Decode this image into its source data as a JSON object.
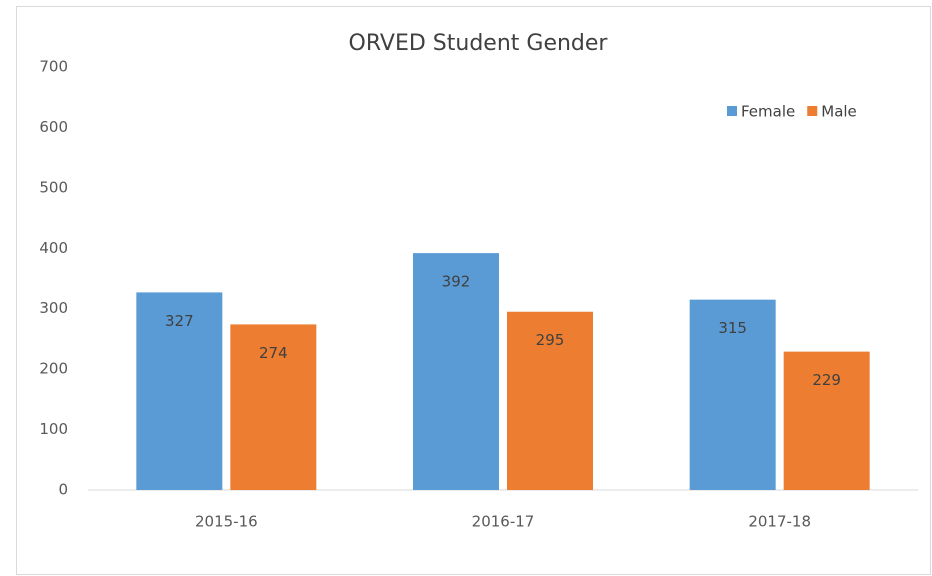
{
  "chart_data": {
    "type": "bar",
    "title": "ORVED Student Gender",
    "categories": [
      "2015-16",
      "2016-17",
      "2017-18"
    ],
    "series": [
      {
        "name": "Female",
        "color": "#5b9bd5",
        "values": [
          327,
          392,
          315
        ]
      },
      {
        "name": "Male",
        "color": "#ed7d31",
        "values": [
          274,
          295,
          229
        ]
      }
    ],
    "ylim": [
      0,
      700
    ],
    "yticks": [
      0,
      100,
      200,
      300,
      400,
      500,
      600,
      700
    ],
    "grid": false,
    "legend": "top-right"
  }
}
